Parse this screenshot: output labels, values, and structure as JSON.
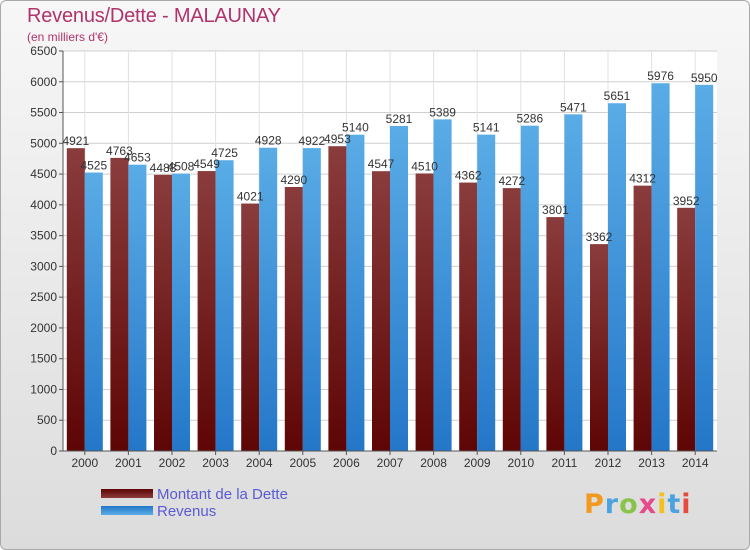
{
  "title": "Revenus/Dette - MALAUNAY",
  "subtitle": "(en milliers d'€)",
  "legend": {
    "debt": "Montant de la Dette",
    "revenue": "Revenus"
  },
  "logo_text": "Proxiti",
  "colors": {
    "debt_dark": "#5e0505",
    "debt_light": "#8a3c3c",
    "revenue_dark": "#2477c8",
    "revenue_light": "#5aace6",
    "title": "#b0336c",
    "legend_text": "#5a5ad6"
  },
  "chart_data": {
    "type": "bar",
    "title": "Revenus/Dette - MALAUNAY",
    "subtitle": "(en milliers d'€)",
    "categories": [
      "2000",
      "2001",
      "2002",
      "2003",
      "2004",
      "2005",
      "2006",
      "2007",
      "2008",
      "2009",
      "2010",
      "2011",
      "2012",
      "2013",
      "2014"
    ],
    "series": [
      {
        "name": "Montant de la Dette",
        "values": [
          4921,
          4763,
          4488,
          4549,
          4021,
          4290,
          4953,
          4547,
          4510,
          4362,
          4272,
          3801,
          3362,
          4312,
          3952
        ]
      },
      {
        "name": "Revenus",
        "values": [
          4525,
          4653,
          4508,
          4725,
          4928,
          4922,
          5140,
          5281,
          5389,
          5141,
          5286,
          5471,
          5651,
          5976,
          5950
        ]
      }
    ],
    "ylim": [
      0,
      6500
    ],
    "yticks": [
      0,
      500,
      1000,
      1500,
      2000,
      2500,
      3000,
      3500,
      4000,
      4500,
      5000,
      5500,
      6000,
      6500
    ],
    "grid": true,
    "legend_position": "bottom-left"
  }
}
